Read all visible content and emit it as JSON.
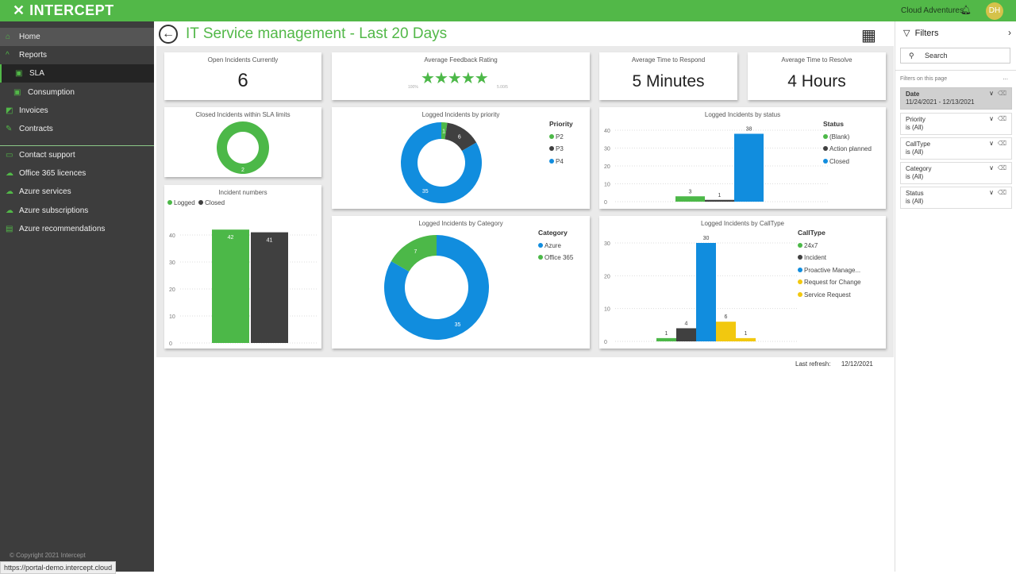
{
  "topbar": {
    "logo": "INTERCEPT",
    "org": "Cloud Adventures",
    "avatar": "DH"
  },
  "sidebar": {
    "items": [
      {
        "label": "Home",
        "icon": "home-icon",
        "g": "⌂",
        "y": 8,
        "cls": "home"
      },
      {
        "label": "Reports",
        "icon": "chevron-up-icon",
        "g": "^",
        "y": 31,
        "cls": ""
      },
      {
        "label": "SLA",
        "icon": "chart-icon",
        "g": "▣",
        "y": 54,
        "cls": "sub sel"
      },
      {
        "label": "Consumption",
        "icon": "chart-icon",
        "g": "▣",
        "y": 78,
        "cls": "sub"
      },
      {
        "label": "Invoices",
        "icon": "invoice-icon",
        "g": "◩",
        "y": 101,
        "cls": ""
      },
      {
        "label": "Contracts",
        "icon": "contract-icon",
        "g": "✎",
        "y": 124,
        "cls": ""
      },
      {
        "label": "Contact support",
        "icon": "support-icon",
        "g": "▭",
        "y": 157,
        "cls": ""
      },
      {
        "label": "Office 365 licences",
        "icon": "cloud-icon",
        "g": "☁",
        "y": 180,
        "cls": ""
      },
      {
        "label": "Azure services",
        "icon": "cloud-icon",
        "g": "☁",
        "y": 203,
        "cls": ""
      },
      {
        "label": "Azure subscriptions",
        "icon": "cloud-icon",
        "g": "☁",
        "y": 227,
        "cls": ""
      },
      {
        "label": "Azure recommendations",
        "icon": "recommend-icon",
        "g": "▤",
        "y": 250,
        "cls": ""
      }
    ],
    "copyright": "© Copyright 2021 Intercept",
    "status_url": "https://portal-demo.intercept.cloud"
  },
  "header": {
    "title": "IT Service management - Last 20 Days"
  },
  "kpis": {
    "open_title": "Open Incidents Currently",
    "open_value": "6",
    "feedback_title": "Average Feedback Rating",
    "feedback_min": "100%",
    "feedback_max": "5.00/5",
    "feedback_stars": 5,
    "respond_title": "Average Time to Respond",
    "respond_value": "5 Minutes",
    "resolve_title": "Average Time to Resolve",
    "resolve_value": "4 Hours"
  },
  "colors": {
    "green": "#4cb848",
    "dark": "#404040",
    "blue": "#118dde",
    "yellow": "#f2c80f"
  },
  "chart_data": [
    {
      "id": "sla",
      "type": "pie",
      "title": "Closed Incidents within SLA limits",
      "labels": [
        "Closed"
      ],
      "values": [
        2
      ],
      "colors": [
        "#4cb848"
      ]
    },
    {
      "id": "numbers",
      "type": "bar",
      "title": "Incident numbers",
      "categories": [
        "Logged",
        "Closed"
      ],
      "values": [
        42,
        41
      ],
      "colors": [
        "#4cb848",
        "#404040"
      ],
      "ylim": [
        0,
        40
      ],
      "yticks": [
        0,
        10,
        20,
        30,
        40
      ]
    },
    {
      "id": "priority",
      "type": "pie",
      "title": "Logged Incidents by priority",
      "legend_title": "Priority",
      "labels": [
        "P2",
        "P3",
        "P4"
      ],
      "values": [
        1,
        6,
        35
      ],
      "colors": [
        "#4cb848",
        "#404040",
        "#118dde"
      ]
    },
    {
      "id": "category",
      "type": "pie",
      "title": "Logged Incidents by Category",
      "legend_title": "Category",
      "labels": [
        "Azure",
        "Office 365"
      ],
      "values": [
        35,
        7
      ],
      "colors": [
        "#118dde",
        "#4cb848"
      ]
    },
    {
      "id": "status",
      "type": "bar",
      "title": "Logged Incidents by status",
      "legend_title": "Status",
      "categories": [
        "(Blank)",
        "Action planned",
        "Closed"
      ],
      "values": [
        3,
        1,
        38
      ],
      "colors": [
        "#4cb848",
        "#404040",
        "#118dde"
      ],
      "ylim": [
        0,
        40
      ],
      "yticks": [
        0,
        10,
        20,
        30,
        40
      ]
    },
    {
      "id": "calltype",
      "type": "bar",
      "title": "Logged Incidents by CallType",
      "legend_title": "CallType",
      "categories": [
        "24x7",
        "Incident",
        "Proactive Manage...",
        "Request for Change",
        "Service Request"
      ],
      "values": [
        1,
        4,
        30,
        6,
        1
      ],
      "colors": [
        "#4cb848",
        "#404040",
        "#118dde",
        "#f2c80f",
        "#f2c80f"
      ],
      "ylim": [
        0,
        30
      ],
      "yticks": [
        0,
        10,
        20,
        30
      ]
    }
  ],
  "footer": {
    "refresh_label": "Last refresh:",
    "refresh_date": "12/12/2021"
  },
  "filters": {
    "title": "Filters",
    "search_placeholder": "Search",
    "section": "Filters on this page",
    "more": "...",
    "items": [
      {
        "name": "Date",
        "value": "11/24/2021 - 12/13/2021"
      },
      {
        "name": "Priority",
        "value": "is (All)"
      },
      {
        "name": "CallType",
        "value": "is (All)"
      },
      {
        "name": "Category",
        "value": "is (All)"
      },
      {
        "name": "Status",
        "value": "is (All)"
      }
    ]
  }
}
